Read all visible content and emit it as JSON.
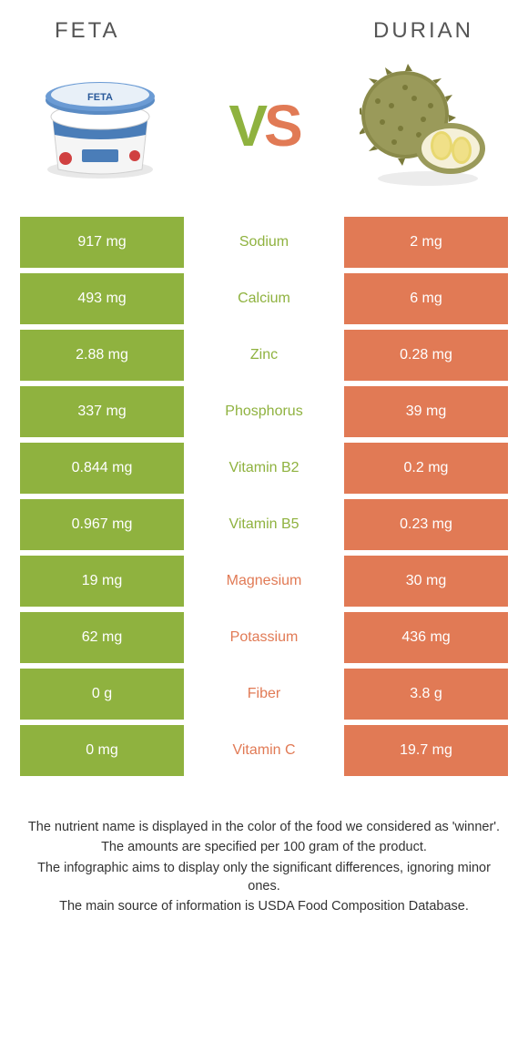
{
  "colors": {
    "green": "#8fb23f",
    "orange": "#e17a55",
    "background": "#ffffff",
    "text": "#333333",
    "title": "#555555"
  },
  "header": {
    "left_title": "FETA",
    "right_title": "DURIAN",
    "vs": {
      "v": "V",
      "s": "S"
    }
  },
  "images": {
    "left_name": "feta",
    "right_name": "durian"
  },
  "rows": [
    {
      "left": "917 mg",
      "label": "Sodium",
      "right": "2 mg",
      "winner": "left"
    },
    {
      "left": "493 mg",
      "label": "Calcium",
      "right": "6 mg",
      "winner": "left"
    },
    {
      "left": "2.88 mg",
      "label": "Zinc",
      "right": "0.28 mg",
      "winner": "left"
    },
    {
      "left": "337 mg",
      "label": "Phosphorus",
      "right": "39 mg",
      "winner": "left"
    },
    {
      "left": "0.844 mg",
      "label": "Vitamin B2",
      "right": "0.2 mg",
      "winner": "left"
    },
    {
      "left": "0.967 mg",
      "label": "Vitamin B5",
      "right": "0.23 mg",
      "winner": "left"
    },
    {
      "left": "19 mg",
      "label": "Magnesium",
      "right": "30 mg",
      "winner": "right"
    },
    {
      "left": "62 mg",
      "label": "Potassium",
      "right": "436 mg",
      "winner": "right"
    },
    {
      "left": "0 g",
      "label": "Fiber",
      "right": "3.8 g",
      "winner": "right"
    },
    {
      "left": "0 mg",
      "label": "Vitamin C",
      "right": "19.7 mg",
      "winner": "right"
    }
  ],
  "footnotes": [
    "The nutrient name is displayed in the color of the food we considered as 'winner'.",
    "The amounts are specified per 100 gram of the product.",
    "The infographic aims to display only the significant differences, ignoring minor ones.",
    "The main source of information is USDA Food Composition Database."
  ]
}
